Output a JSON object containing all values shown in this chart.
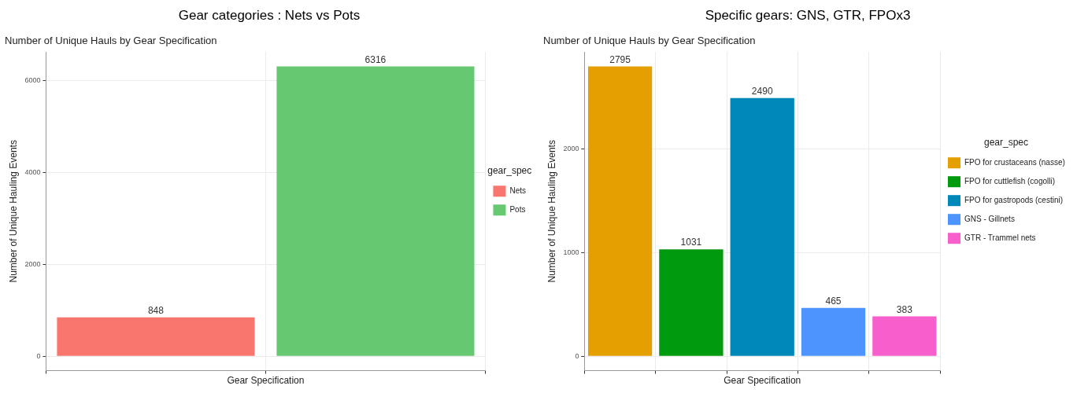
{
  "chart_data": [
    {
      "type": "bar",
      "title": "Gear categories : Nets vs Pots",
      "subtitle": "Number of Unique Hauls by Gear Specification",
      "xlabel": "Gear Specification",
      "ylabel": "Number of Unique Hauling Events",
      "legend_title": "gear_spec",
      "legend": "right",
      "grid": true,
      "data_labels": true,
      "tick_labels": "y",
      "categories": [
        null,
        null
      ],
      "ylim": [
        -316,
        6632
      ],
      "yticks": [
        0,
        2000,
        4000,
        6000
      ],
      "series": [
        {
          "name": "Nets",
          "color": "#f8766d",
          "values": [
            848,
            null
          ]
        },
        {
          "name": "Pots",
          "color": "#66c871",
          "values": [
            null,
            6316
          ]
        }
      ]
    },
    {
      "type": "bar",
      "title": "Specific gears: GNS, GTR, FPOx3",
      "subtitle": "Number of Unique Hauls by Gear Specification",
      "xlabel": "Gear Specification",
      "ylabel": "Number of Unique Hauling Events",
      "legend_title": "gear_spec",
      "legend": "right",
      "grid": true,
      "data_labels": true,
      "tick_labels": "y",
      "categories": [
        null,
        null,
        null,
        null,
        null
      ],
      "ylim": [
        -140,
        2935
      ],
      "yticks": [
        0,
        1000,
        2000
      ],
      "series": [
        {
          "name": "FPO for crustaceans (nasse)",
          "color": "#e69f00",
          "values": [
            2795,
            null,
            null,
            null,
            null
          ]
        },
        {
          "name": "FPO for cuttlefish (cogolli)",
          "color": "#009a0e",
          "values": [
            null,
            1031,
            null,
            null,
            null
          ]
        },
        {
          "name": "FPO for gastropods (cestini)",
          "color": "#0088bb",
          "values": [
            null,
            null,
            2490,
            null,
            null
          ]
        },
        {
          "name": "GNS - Gillnets",
          "color": "#4d94ff",
          "values": [
            null,
            null,
            null,
            465,
            null
          ]
        },
        {
          "name": "GTR - Trammel nets",
          "color": "#f75fcc",
          "values": [
            null,
            null,
            null,
            null,
            383
          ]
        }
      ]
    }
  ]
}
